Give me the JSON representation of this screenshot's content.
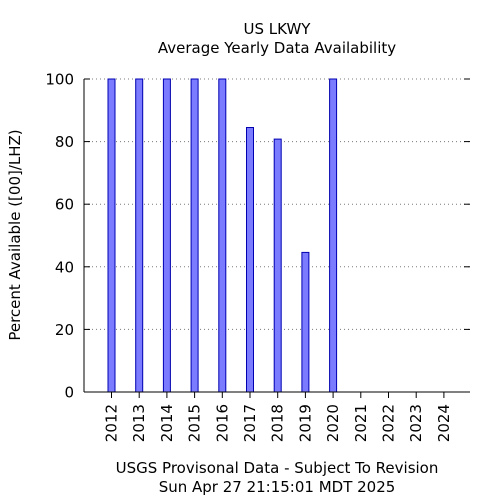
{
  "chart_data": {
    "type": "bar",
    "title": "US LKWY",
    "subtitle": "Average Yearly Data Availability",
    "ylabel": "Percent Available ([00]/LHZ)",
    "xlabel": "",
    "footer_line1": "USGS Provisonal Data - Subject To Revision",
    "footer_line2": "Sun Apr 27 21:15:01 MDT 2025",
    "categories": [
      "2012",
      "2013",
      "2014",
      "2015",
      "2016",
      "2017",
      "2018",
      "2019",
      "2020",
      "2021",
      "2022",
      "2023",
      "2024"
    ],
    "values": [
      100,
      100,
      100,
      100,
      100,
      84.5,
      80.8,
      44.6,
      100,
      0,
      0,
      0,
      0
    ],
    "ylim": [
      0,
      100
    ],
    "yticks": [
      0,
      20,
      40,
      60,
      80,
      100
    ],
    "grid": true,
    "legend": "none",
    "bar_color": "#7b7bff",
    "bar_edge_color": "#0000b0"
  }
}
